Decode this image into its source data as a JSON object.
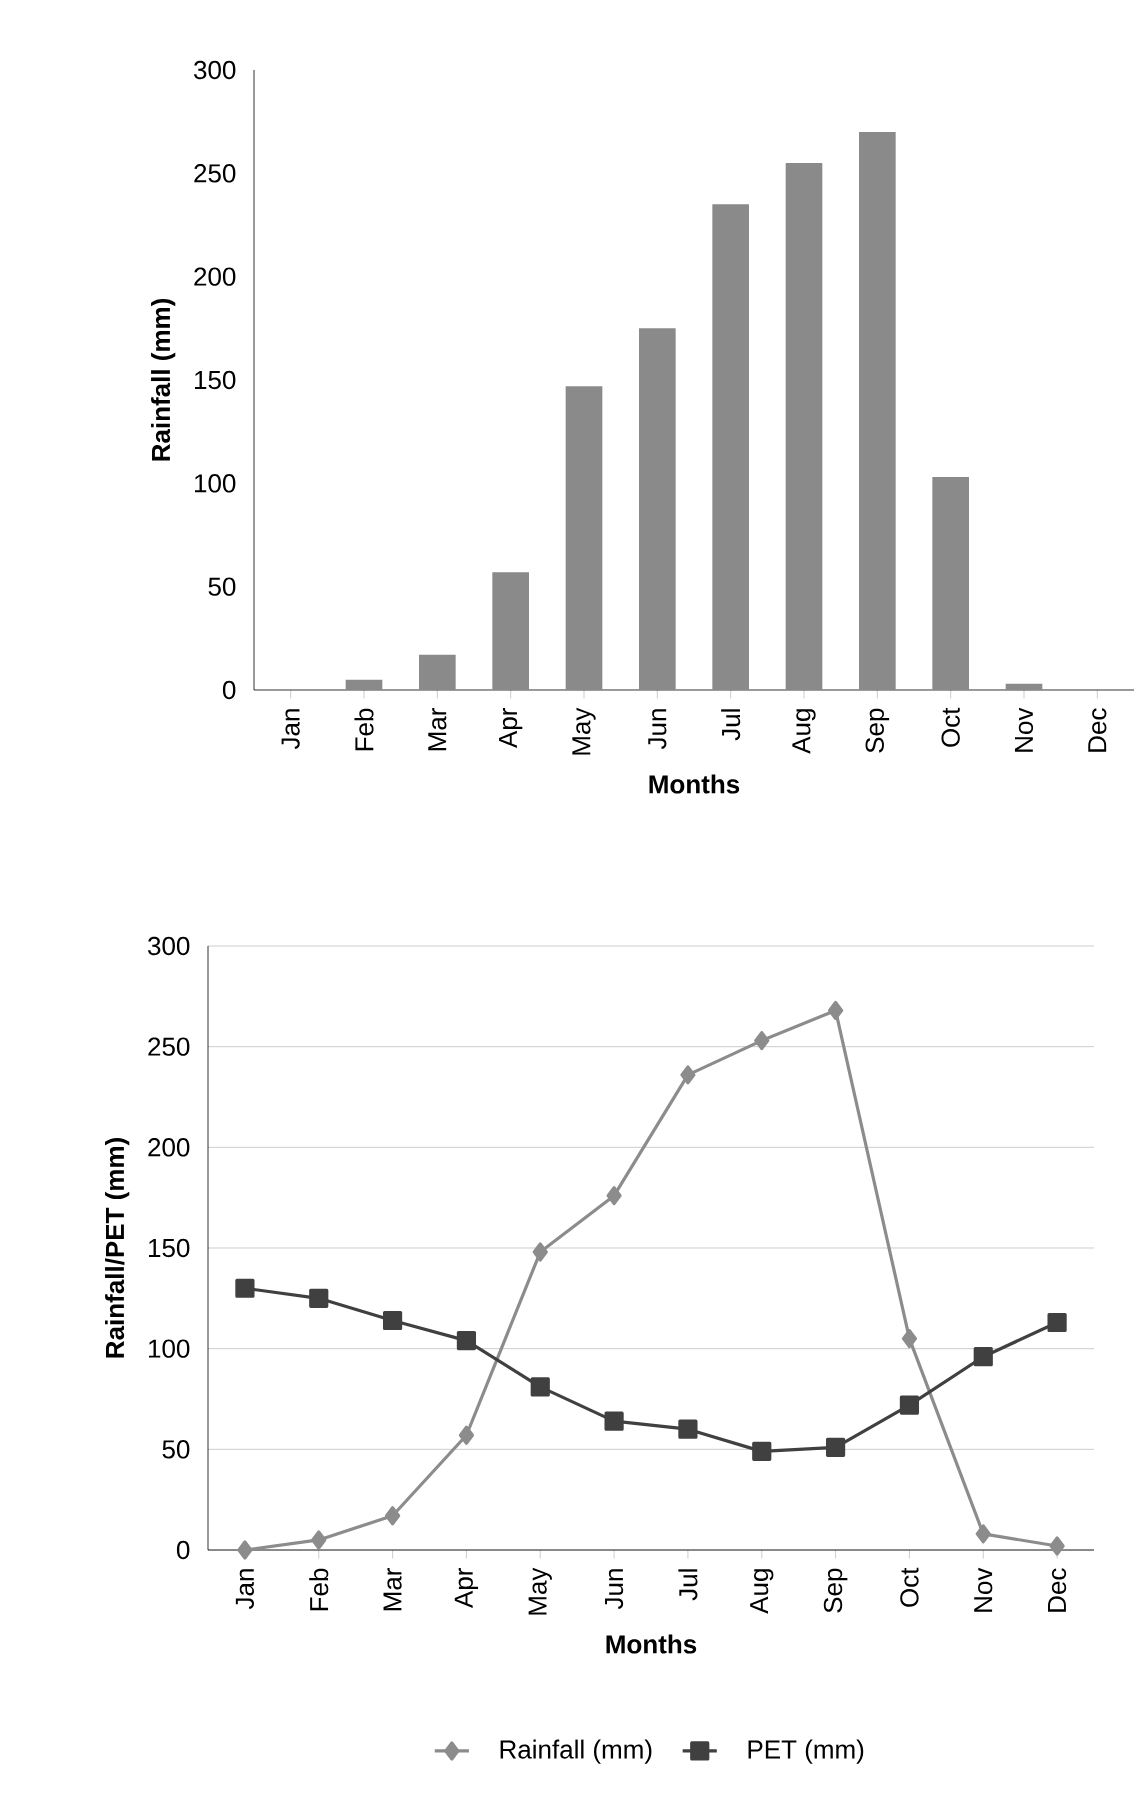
{
  "chart_data": [
    {
      "type": "bar",
      "ylabel": "Rainfall (mm)",
      "xlabel": "Months",
      "categories": [
        "Jan",
        "Feb",
        "Mar",
        "Apr",
        "May",
        "Jun",
        "Jul",
        "Aug",
        "Sep",
        "Oct",
        "Nov",
        "Dec"
      ],
      "values": [
        0,
        5,
        17,
        57,
        147,
        175,
        235,
        255,
        270,
        103,
        3,
        0
      ],
      "color": "#8a8a8a",
      "ylim": [
        0,
        300
      ],
      "yticks": [
        0,
        50,
        100,
        150,
        200,
        250,
        300
      ]
    },
    {
      "type": "line",
      "ylabel": "Rainfall/PET (mm)",
      "xlabel": "Months",
      "categories": [
        "Jan",
        "Feb",
        "Mar",
        "Apr",
        "May",
        "Jun",
        "Jul",
        "Aug",
        "Sep",
        "Oct",
        "Nov",
        "Dec"
      ],
      "series": [
        {
          "name": "Rainfall (mm)",
          "color": "#8c8c8c",
          "marker": "diamond",
          "values": [
            0,
            5,
            17,
            57,
            148,
            176,
            236,
            253,
            268,
            105,
            8,
            2
          ]
        },
        {
          "name": "PET (mm)",
          "color": "#404040",
          "marker": "square",
          "values": [
            130,
            125,
            114,
            104,
            81,
            64,
            60,
            49,
            51,
            72,
            96,
            113
          ]
        }
      ],
      "ylim": [
        0,
        300
      ],
      "yticks": [
        0,
        50,
        100,
        150,
        200,
        250,
        300
      ],
      "grid": "y",
      "legend": "bottom"
    }
  ]
}
